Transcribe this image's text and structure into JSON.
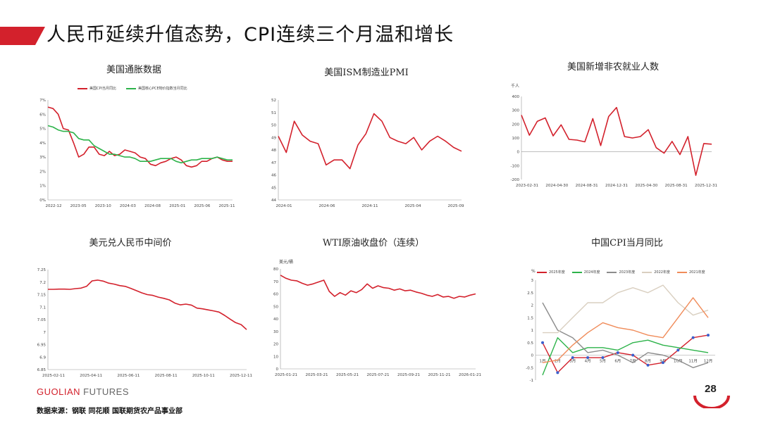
{
  "page": {
    "title": "人民币延续升值态势，CPI连续三个月温和增长",
    "brand_main": "GUOLIAN ",
    "brand_sub": "FUTURES",
    "source": "数据来源：钢联  同花顺  国联期货农产品事业部",
    "page_number": "28"
  },
  "colors": {
    "accent": "#d3212c",
    "green": "#2db34a",
    "grey": "#8c8c8c",
    "beige": "#d9cfc0",
    "orange": "#f08c5a",
    "blue": "#3a5fcd"
  },
  "chart_data": [
    {
      "id": "inflation",
      "type": "line",
      "title": "美国通胀数据",
      "x_ticks": [
        "2022-12",
        "2023-05",
        "2023-10",
        "2024-03",
        "2024-08",
        "2025-01",
        "2025-06",
        "2025-11"
      ],
      "y_ticks": [
        "0%",
        "1%",
        "2%",
        "3%",
        "4%",
        "5%",
        "6%",
        "7%"
      ],
      "ylim": [
        0,
        7
      ],
      "series": [
        {
          "name": "美国CPI当月同比",
          "color": "#d3212c",
          "values": [
            6.5,
            6.4,
            6.0,
            5.0,
            4.9,
            4.0,
            3.0,
            3.2,
            3.7,
            3.7,
            3.2,
            3.1,
            3.4,
            3.1,
            3.2,
            3.5,
            3.4,
            3.3,
            3.0,
            2.9,
            2.5,
            2.4,
            2.6,
            2.7,
            2.9,
            3.0,
            2.8,
            2.4,
            2.3,
            2.4,
            2.7,
            2.7,
            2.9,
            3.0,
            2.8,
            2.7,
            2.7
          ]
        },
        {
          "name": "美国核心PCE物价指数当月同比",
          "color": "#2db34a",
          "values": [
            5.2,
            5.1,
            4.9,
            4.8,
            4.8,
            4.7,
            4.3,
            4.2,
            4.2,
            3.8,
            3.6,
            3.4,
            3.2,
            3.2,
            3.1,
            3.0,
            3.0,
            2.9,
            2.7,
            2.7,
            2.7,
            2.8,
            2.9,
            2.9,
            2.9,
            2.7,
            2.6,
            2.7,
            2.8,
            2.8,
            2.9,
            2.9,
            2.9,
            3.0,
            2.9,
            2.8,
            2.8
          ]
        }
      ]
    },
    {
      "id": "ism",
      "type": "line",
      "title": "美国ISM制造业PMI",
      "x_ticks": [
        "2024-01",
        "2024-06",
        "2024-11",
        "2025-04",
        "2025-09"
      ],
      "y_ticks": [
        "44",
        "45",
        "46",
        "47",
        "48",
        "49",
        "50",
        "51",
        "52"
      ],
      "ylim": [
        44,
        52
      ],
      "series": [
        {
          "name": "美国ISM制造业PMI",
          "color": "#d3212c",
          "values": [
            49.1,
            47.8,
            50.3,
            49.2,
            48.7,
            48.5,
            46.8,
            47.2,
            47.2,
            46.5,
            48.4,
            49.3,
            50.9,
            50.3,
            49.0,
            48.7,
            48.5,
            49.0,
            48.0,
            48.7,
            49.1,
            48.7,
            48.2,
            47.9
          ]
        }
      ]
    },
    {
      "id": "nfp",
      "type": "line",
      "title": "美国新增非农就业人数",
      "unit": "千人",
      "x_ticks": [
        "2023-02-31",
        "2024-04-30",
        "2024-08-31",
        "2024-12-31",
        "2025-04-30",
        "2025-08-31",
        "2025-12-31"
      ],
      "y_ticks": [
        "-200",
        "-100",
        "0",
        "100",
        "200",
        "300",
        "400"
      ],
      "ylim": [
        -200,
        400
      ],
      "series": [
        {
          "name": "美国新增非农就业人数",
          "color": "#d3212c",
          "values": [
            265,
            120,
            220,
            245,
            115,
            195,
            90,
            85,
            72,
            240,
            45,
            255,
            320,
            110,
            100,
            110,
            160,
            30,
            -10,
            75,
            -20,
            110,
            -170,
            60,
            55
          ]
        }
      ]
    },
    {
      "id": "usdcny",
      "type": "line",
      "title": "美元兑人民币中间价",
      "x_ticks": [
        "2025-02-11",
        "2025-04-11",
        "2025-06-11",
        "2025-08-11",
        "2025-10-11",
        "2025-12-11"
      ],
      "y_ticks": [
        "6.85",
        "6.9",
        "6.95",
        "7",
        "7.05",
        "7.1",
        "7.15",
        "7.2",
        "7.25"
      ],
      "ylim": [
        6.85,
        7.25
      ],
      "series": [
        {
          "name": "美元兑人民币中间价",
          "color": "#d3212c",
          "values": [
            7.171,
            7.171,
            7.172,
            7.172,
            7.171,
            7.174,
            7.176,
            7.183,
            7.205,
            7.208,
            7.204,
            7.196,
            7.192,
            7.186,
            7.183,
            7.175,
            7.166,
            7.157,
            7.15,
            7.147,
            7.14,
            7.135,
            7.129,
            7.116,
            7.109,
            7.112,
            7.108,
            7.096,
            7.093,
            7.089,
            7.085,
            7.08,
            7.067,
            7.052,
            7.038,
            7.03,
            7.01
          ]
        }
      ]
    },
    {
      "id": "wti",
      "type": "line",
      "title": "WTI原油收盘价（连续）",
      "unit": "美元/桶",
      "x_ticks": [
        "2025-01-21",
        "2025-03-21",
        "2025-05-21",
        "2025-07-21",
        "2025-09-21",
        "2025-11-21",
        "2026-01-21"
      ],
      "y_ticks": [
        "0",
        "10",
        "20",
        "30",
        "40",
        "50",
        "60",
        "70",
        "80"
      ],
      "ylim": [
        0,
        80
      ],
      "series": [
        {
          "name": "WTI原油收盘价（连续）",
          "color": "#d3212c",
          "values": [
            75.0,
            72.5,
            71.0,
            70.5,
            68.5,
            67.0,
            68.0,
            69.5,
            71.0,
            62.0,
            58.0,
            61.0,
            59.0,
            62.5,
            61.0,
            63.5,
            68.0,
            64.5,
            66.5,
            65.0,
            64.5,
            63.0,
            64.0,
            62.5,
            63.0,
            61.5,
            60.5,
            59.0,
            58.0,
            59.5,
            57.5,
            58.0,
            56.5,
            58.0,
            57.5,
            59.0,
            60.0
          ]
        }
      ]
    },
    {
      "id": "cpi_cn",
      "type": "line",
      "title": "中国CPI当月同比",
      "unit": "%",
      "categories": [
        "1月",
        "2月",
        "3月",
        "4月",
        "5月",
        "6月",
        "7月",
        "8月",
        "9月",
        "10月",
        "11月",
        "12月"
      ],
      "y_ticks": [
        "-1",
        "-0.5",
        "0",
        "0.5",
        "1",
        "1.5",
        "2",
        "2.5",
        "3"
      ],
      "ylim": [
        -1,
        3
      ],
      "series": [
        {
          "name": "2025年度",
          "color": "#d3212c",
          "values": [
            0.5,
            -0.7,
            -0.1,
            -0.1,
            -0.1,
            0.1,
            0.0,
            -0.4,
            -0.3,
            0.2,
            0.7,
            0.8
          ]
        },
        {
          "name": "2024年度",
          "color": "#2db34a",
          "values": [
            -0.8,
            0.7,
            0.1,
            0.3,
            0.3,
            0.2,
            0.5,
            0.6,
            0.4,
            0.3,
            0.2,
            0.1
          ]
        },
        {
          "name": "2023年度",
          "color": "#8c8c8c",
          "values": [
            2.1,
            1.0,
            0.7,
            0.1,
            0.2,
            0.0,
            -0.3,
            0.1,
            0.0,
            -0.2,
            -0.5,
            -0.3
          ]
        },
        {
          "name": "2022年度",
          "color": "#d9cfc0",
          "values": [
            0.9,
            0.9,
            1.5,
            2.1,
            2.1,
            2.5,
            2.7,
            2.5,
            2.8,
            2.1,
            1.6,
            1.8
          ]
        },
        {
          "name": "2021年度",
          "color": "#f08c5a",
          "values": [
            -0.3,
            -0.2,
            0.4,
            0.9,
            1.3,
            1.1,
            1.0,
            0.8,
            0.7,
            1.5,
            2.3,
            1.5
          ]
        }
      ]
    }
  ]
}
